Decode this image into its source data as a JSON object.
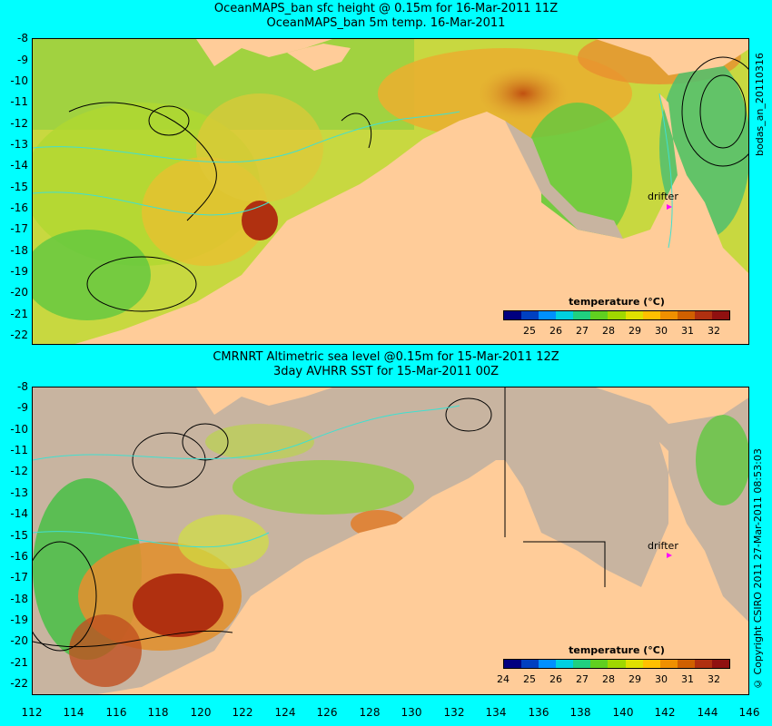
{
  "top": {
    "title_line1": "OceanMAPS_ban sfc height @ 0.15m for 16-Mar-2011 11Z",
    "title_line2": "OceanMAPS_ban 5m temp. 16-Mar-2011",
    "side_label": "bodas_an_20110316",
    "colorbar": {
      "title": "temperature (°C)",
      "ticks": [
        "25",
        "26",
        "27",
        "28",
        "29",
        "30",
        "31",
        "32"
      ]
    },
    "drifter_label": "drifter"
  },
  "bottom": {
    "title_line1": "CMRNRT Altimetric sea level  @0.15m  for 15-Mar-2011 12Z",
    "title_line2": "3day AVHRR SST for 15-Mar-2011 00Z",
    "side_label": "© Copyright CSIRO 2011   27-Mar-2011 08:53:03",
    "colorbar": {
      "title": "temperature (°C)",
      "ticks": [
        "24",
        "25",
        "26",
        "27",
        "28",
        "29",
        "30",
        "31",
        "32"
      ]
    },
    "drifter_label": "drifter"
  },
  "axes": {
    "lat_labels": [
      "-8",
      "-9",
      "-10",
      "-11",
      "-12",
      "-13",
      "-14",
      "-15",
      "-16",
      "-17",
      "-18",
      "-19",
      "-20",
      "-21",
      "-22"
    ],
    "lon_labels": [
      "112",
      "114",
      "116",
      "118",
      "120",
      "122",
      "124",
      "126",
      "128",
      "130",
      "132",
      "134",
      "136",
      "138",
      "140",
      "142",
      "144",
      "146"
    ]
  },
  "colors": {
    "land": "#ffcc99",
    "nodata": "#c8b4a0",
    "frame_bg": "#00ffff",
    "drifter": "#ff00ff",
    "contour": "#000000",
    "bathy": "#40e0d0"
  },
  "colorscale": [
    "#000080",
    "#0040c0",
    "#0090ff",
    "#00d0e0",
    "#20d080",
    "#60d020",
    "#a0d800",
    "#e0e000",
    "#ffc000",
    "#f09000",
    "#d06000",
    "#b03010",
    "#901010"
  ]
}
